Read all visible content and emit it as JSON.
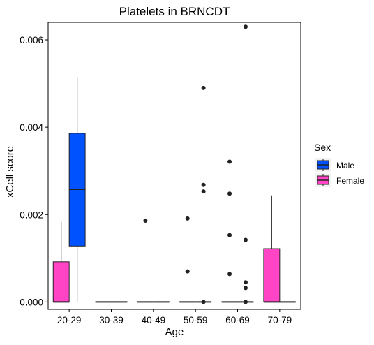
{
  "chart_data": {
    "type": "boxplot",
    "title": "Platelets in BRNCDT",
    "xlabel": "Age",
    "ylabel": "xCell score",
    "categories": [
      "20-29",
      "30-39",
      "40-49",
      "50-59",
      "60-69",
      "70-79"
    ],
    "ylim": [
      -0.00017,
      0.0064
    ],
    "yticks": [
      0.0,
      0.002,
      0.004,
      0.006
    ],
    "ytick_labels": [
      "0.000",
      "0.002",
      "0.004",
      "0.006"
    ],
    "grid": false,
    "legend": {
      "title": "Sex",
      "position": "right",
      "entries": [
        {
          "label": "Male",
          "color": "#0052FF"
        },
        {
          "label": "Female",
          "color": "#FF45C6"
        }
      ]
    },
    "series": [
      {
        "name": "Male",
        "color": "#0052FF",
        "boxes": [
          {
            "category": "20-29",
            "whisker_low": 0.0,
            "q1": 0.00128,
            "median": 0.00258,
            "q3": 0.00386,
            "whisker_high": 0.00515,
            "outliers": []
          },
          {
            "category": "30-39",
            "whisker_low": 0.0,
            "q1": 0.0,
            "median": 0.0,
            "q3": 0.0,
            "whisker_high": 0.0,
            "outliers": []
          },
          {
            "category": "40-49",
            "whisker_low": 0.0,
            "q1": 0.0,
            "median": 0.0,
            "q3": 0.0,
            "whisker_high": 0.0,
            "outliers": []
          },
          {
            "category": "50-59",
            "whisker_low": 0.0,
            "q1": 0.0,
            "median": 0.0,
            "q3": 0.0,
            "whisker_high": 0.0,
            "outliers": [
              0.0049,
              0.00268,
              0.00253,
              0.0
            ]
          },
          {
            "category": "60-69",
            "whisker_low": 0.0,
            "q1": 0.0,
            "median": 0.0,
            "q3": 0.0,
            "whisker_high": 0.0,
            "outliers": [
              0.0063,
              0.00142,
              0.00045,
              0.00032,
              0.0
            ]
          },
          {
            "category": "70-79",
            "whisker_low": 0.0,
            "q1": 0.0,
            "median": 0.0,
            "q3": 0.0,
            "whisker_high": 0.0,
            "outliers": []
          }
        ]
      },
      {
        "name": "Female",
        "color": "#FF45C6",
        "boxes": [
          {
            "category": "20-29",
            "whisker_low": 0.0,
            "q1": 0.0,
            "median": 0.0,
            "q3": 0.00092,
            "whisker_high": 0.00183,
            "outliers": []
          },
          {
            "category": "30-39",
            "whisker_low": 0.0,
            "q1": 0.0,
            "median": 0.0,
            "q3": 0.0,
            "whisker_high": 0.0,
            "outliers": []
          },
          {
            "category": "40-49",
            "whisker_low": 0.0,
            "q1": 0.0,
            "median": 0.0,
            "q3": 0.0,
            "whisker_high": 0.0,
            "outliers": [
              0.00186
            ]
          },
          {
            "category": "50-59",
            "whisker_low": 0.0,
            "q1": 0.0,
            "median": 0.0,
            "q3": 0.0,
            "whisker_high": 0.0,
            "outliers": [
              0.00191,
              0.0007
            ]
          },
          {
            "category": "60-69",
            "whisker_low": 0.0,
            "q1": 0.0,
            "median": 0.0,
            "q3": 0.0,
            "whisker_high": 0.0,
            "outliers": [
              0.00321,
              0.00248,
              0.00153,
              0.00064
            ]
          },
          {
            "category": "70-79",
            "whisker_low": 0.0,
            "q1": 0.0,
            "median": 0.0,
            "q3": 0.00122,
            "whisker_high": 0.00244,
            "outliers": []
          }
        ]
      }
    ]
  }
}
